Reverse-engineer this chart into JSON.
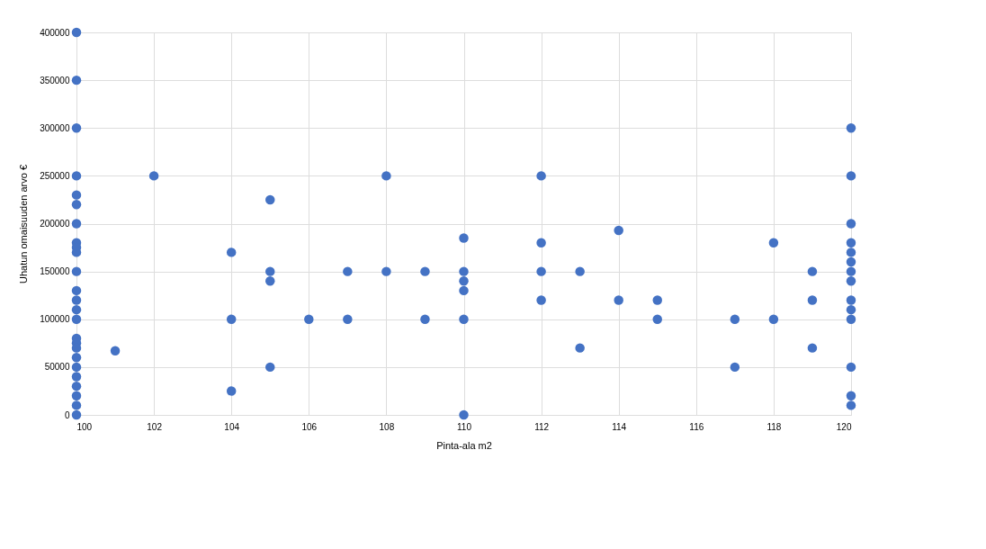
{
  "chart_data": {
    "type": "scatter",
    "xlabel": "Pinta-ala m2",
    "ylabel": "Uhatun omaisuuden arvo €",
    "x": [
      100,
      100,
      100,
      100,
      100,
      100,
      100,
      100,
      100,
      100,
      100,
      100,
      100,
      100,
      100,
      100,
      100,
      100,
      100,
      100,
      100,
      100,
      100,
      100,
      100,
      101,
      102,
      104,
      104,
      104,
      105,
      105,
      105,
      105,
      106,
      107,
      107,
      108,
      108,
      109,
      109,
      110,
      110,
      110,
      110,
      110,
      110,
      112,
      112,
      112,
      112,
      113,
      113,
      114,
      114,
      115,
      115,
      117,
      117,
      118,
      118,
      119,
      119,
      119,
      120,
      120,
      120,
      120,
      120,
      120,
      120,
      120,
      120,
      120,
      120,
      120,
      120,
      120
    ],
    "series": [
      {
        "color": "#4472c4",
        "values": [
          400000,
          350000,
          300000,
          250000,
          230000,
          220000,
          200000,
          180000,
          175000,
          170000,
          150000,
          130000,
          120000,
          110000,
          100000,
          80000,
          75000,
          70000,
          60000,
          50000,
          40000,
          30000,
          20000,
          10000,
          0,
          67000,
          250000,
          170000,
          100000,
          25000,
          225000,
          150000,
          140000,
          50000,
          100000,
          150000,
          100000,
          250000,
          150000,
          150000,
          100000,
          185000,
          150000,
          140000,
          130000,
          100000,
          0,
          250000,
          180000,
          150000,
          120000,
          150000,
          70000,
          193000,
          120000,
          120000,
          100000,
          100000,
          50000,
          180000,
          100000,
          150000,
          120000,
          70000,
          300000,
          250000,
          200000,
          180000,
          170000,
          160000,
          150000,
          140000,
          120000,
          110000,
          100000,
          50000,
          20000,
          10000
        ]
      }
    ],
    "xlim": [
      100,
      120
    ],
    "xticks": [
      100,
      102,
      104,
      106,
      108,
      110,
      112,
      114,
      116,
      118,
      120
    ],
    "ylim": [
      0,
      400000
    ],
    "yticks": [
      0,
      50000,
      100000,
      150000,
      200000,
      250000,
      300000,
      350000,
      400000
    ],
    "grid": true,
    "marker": "circle",
    "legend": false
  }
}
